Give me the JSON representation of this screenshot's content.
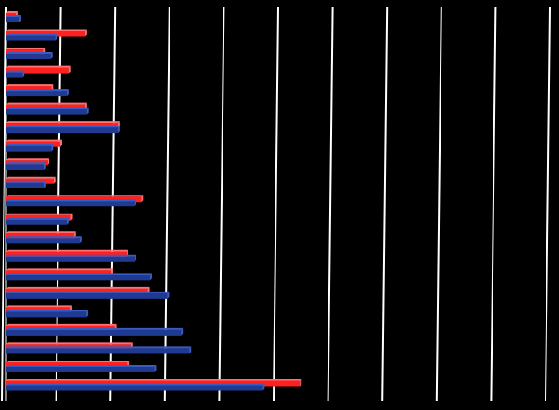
{
  "chart_data": {
    "type": "bar",
    "orientation": "horizontal",
    "x_range": [
      0,
      100
    ],
    "grid": true,
    "colors": {
      "background": "#000000",
      "gridline": "#ffffff",
      "red_series": "#ff2020",
      "blue_series": "#1f3a93"
    },
    "series": [
      {
        "values": [
          1.8,
          14.5,
          6.8,
          11.5,
          8.3,
          14.5,
          20.6,
          9.9,
          7.6,
          8.7,
          24.8,
          11.8,
          12.5,
          22.1,
          19.3,
          26.0,
          11.7,
          19.9,
          22.9,
          22.3,
          54.0
        ]
      },
      {
        "values": [
          2.3,
          9.0,
          8.2,
          3.0,
          11.2,
          14.8,
          20.6,
          8.3,
          6.9,
          6.9,
          23.6,
          11.2,
          13.5,
          23.6,
          26.4,
          29.6,
          14.7,
          32.2,
          33.7,
          27.3,
          47.1
        ]
      }
    ]
  }
}
